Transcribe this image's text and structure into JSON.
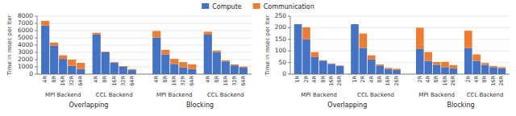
{
  "chart_data": [
    {
      "type": "bar",
      "stacked": true,
      "grid": true,
      "legend": "top",
      "ylabel": "Time in msec per Iter",
      "ylim": [
        0,
        8000
      ],
      "yticks": [
        0,
        1000,
        2000,
        3000,
        4000,
        5000,
        6000,
        7000,
        8000
      ],
      "groups": [
        {
          "label": "MPI Backend",
          "section": "Overlapping",
          "categories": [
            "4R",
            "8R",
            "16R",
            "32R",
            "64R"
          ]
        },
        {
          "label": "CCL Backend",
          "section": "Overlapping",
          "categories": [
            "4R",
            "8R",
            "16R",
            "32R",
            "64R"
          ]
        },
        {
          "label": "MPI Backend",
          "section": "Blocking",
          "categories": [
            "4R",
            "8R",
            "16R",
            "32R",
            "64R"
          ]
        },
        {
          "label": "CCL Backend",
          "section": "Blocking",
          "categories": [
            "4R",
            "8R",
            "16R",
            "32R",
            "64R"
          ]
        }
      ],
      "series": [
        {
          "name": "Compute",
          "color": "#4472C4",
          "values": [
            6700,
            3900,
            2100,
            1150,
            700,
            5450,
            3000,
            1550,
            1000,
            600,
            5050,
            2700,
            1400,
            950,
            700,
            5450,
            3050,
            1750,
            1200,
            900
          ]
        },
        {
          "name": "Communication",
          "color": "#ED7D31",
          "values": [
            650,
            450,
            500,
            850,
            850,
            250,
            100,
            100,
            100,
            100,
            900,
            650,
            700,
            700,
            650,
            400,
            200,
            150,
            150,
            150
          ]
        }
      ]
    },
    {
      "type": "bar",
      "stacked": true,
      "grid": true,
      "ylabel": "Time in msec per Iter",
      "ylim": [
        0,
        250
      ],
      "yticks": [
        0,
        50,
        100,
        150,
        200,
        250
      ],
      "groups": [
        {
          "label": "MPI Backend",
          "section": "Overlapping",
          "categories": [
            "1R",
            "2R",
            "4R",
            "8R",
            "16R",
            "26R"
          ]
        },
        {
          "label": "CCL Backend",
          "section": "Overlapping",
          "categories": [
            "1R",
            "2R",
            "4R",
            "8R",
            "16R",
            "26R"
          ]
        },
        {
          "label": "MPI Backend",
          "section": "Blocking",
          "categories": [
            "2R",
            "4R",
            "8R",
            "16R",
            "26R"
          ]
        },
        {
          "label": "CCL Backend",
          "section": "Blocking",
          "categories": [
            "2R",
            "4R",
            "8R",
            "16R",
            "26R"
          ]
        }
      ],
      "series": [
        {
          "color": "#4472C4",
          "values": [
            215,
            150,
            73,
            58,
            44,
            35,
            215,
            113,
            63,
            37,
            22,
            18,
            108,
            57,
            40,
            30,
            25,
            112,
            57,
            40,
            30,
            25
          ]
        },
        {
          "color": "#ED7D31",
          "values": [
            0,
            52,
            22,
            2,
            2,
            2,
            0,
            62,
            18,
            5,
            5,
            5,
            92,
            38,
            12,
            23,
            14,
            75,
            28,
            8,
            5,
            5
          ]
        }
      ]
    }
  ]
}
